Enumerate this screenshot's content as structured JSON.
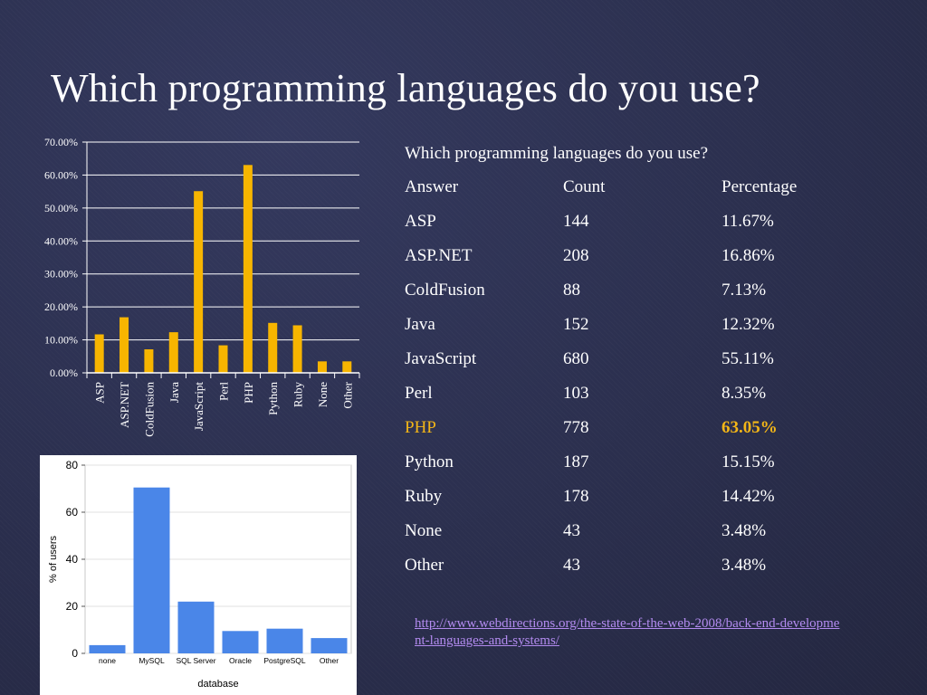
{
  "slide": {
    "title": "Which programming languages do you use?"
  },
  "table": {
    "caption": "Which programming languages do you use?",
    "headers": [
      "Answer",
      "Count",
      "Percentage"
    ],
    "rows": [
      {
        "answer": "ASP",
        "count": "144",
        "percentage": "11.67%"
      },
      {
        "answer": "ASP.NET",
        "count": "208",
        "percentage": "16.86%"
      },
      {
        "answer": "ColdFusion",
        "count": "88",
        "percentage": "7.13%"
      },
      {
        "answer": "Java",
        "count": "152",
        "percentage": "12.32%"
      },
      {
        "answer": "JavaScript",
        "count": "680",
        "percentage": "55.11%"
      },
      {
        "answer": "Perl",
        "count": "103",
        "percentage": "8.35%"
      },
      {
        "answer": "PHP",
        "count": "778",
        "percentage": "63.05%",
        "highlight": true
      },
      {
        "answer": "Python",
        "count": "187",
        "percentage": "15.15%"
      },
      {
        "answer": "Ruby",
        "count": "178",
        "percentage": "14.42%"
      },
      {
        "answer": "None",
        "count": "43",
        "percentage": "3.48%"
      },
      {
        "answer": "Other",
        "count": "43",
        "percentage": "3.48%"
      }
    ],
    "highlight_color": "#f3b617"
  },
  "source": {
    "url": "http://www.webdirections.org/the-state-of-the-web-2008/back-end-development-languages-and-systems/"
  },
  "chart_data": [
    {
      "type": "bar",
      "categories": [
        "ASP",
        "ASP.NET",
        "ColdFusion",
        "Java",
        "JavaScript",
        "Perl",
        "PHP",
        "Python",
        "Ruby",
        "None",
        "Other"
      ],
      "values": [
        11.67,
        16.86,
        7.13,
        12.32,
        55.11,
        8.35,
        63.05,
        15.15,
        14.42,
        3.48,
        3.48
      ],
      "yticks": [
        "0.00%",
        "10.00%",
        "20.00%",
        "30.00%",
        "40.00%",
        "50.00%",
        "60.00%",
        "70.00%"
      ],
      "ylim": [
        0,
        70
      ],
      "grid": true,
      "bar_color": "#f7b500",
      "axis_color": "#ffffff",
      "title": "",
      "xlabel": "",
      "ylabel": ""
    },
    {
      "type": "bar",
      "categories": [
        "none",
        "MySQL",
        "SQL Server",
        "Oracle",
        "PostgreSQL",
        "Other"
      ],
      "values": [
        3.5,
        70.5,
        22,
        9.5,
        10.5,
        6.5
      ],
      "yticks": [
        "0",
        "20",
        "40",
        "60",
        "80"
      ],
      "ylim": [
        0,
        80
      ],
      "grid": true,
      "bar_color": "#4a86e8",
      "xlabel": "database",
      "ylabel": "% of users",
      "title": ""
    }
  ]
}
